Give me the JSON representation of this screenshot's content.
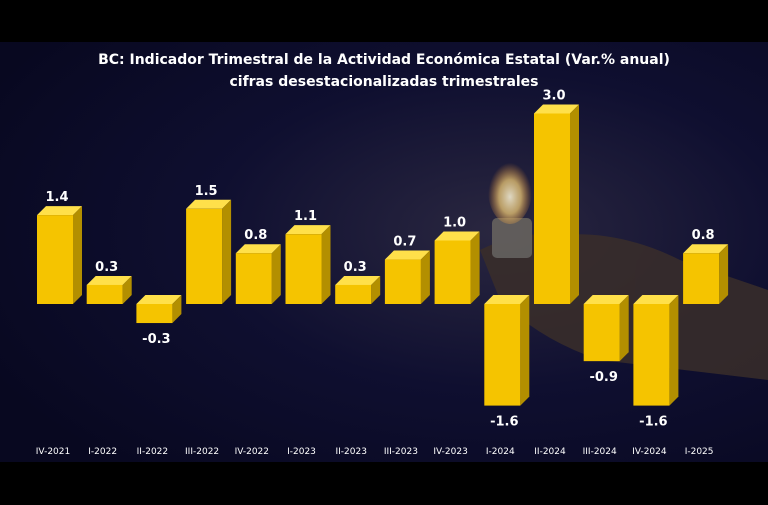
{
  "chart_data": {
    "type": "bar",
    "title": "BC: Indicador Trimestral de la Actividad Económica Estatal (Var.% anual)",
    "subtitle": "cifras desestacionalizadas trimestrales",
    "categories": [
      "IV-2021",
      "I-2022",
      "II-2022",
      "III-2022",
      "IV-2022",
      "I-2023",
      "II-2023",
      "III-2023",
      "IV-2023",
      "I-2024",
      "II-2024",
      "III-2024",
      "IV-2024",
      "I-2025"
    ],
    "values": [
      1.4,
      0.3,
      -0.3,
      1.5,
      0.8,
      1.1,
      0.3,
      0.7,
      1.0,
      -1.6,
      3.0,
      -0.9,
      -1.6,
      0.8
    ],
    "value_labels": [
      "1.4",
      "0.3",
      "-0.3",
      "1.5",
      "0.8",
      "1.1",
      "0.3",
      "0.7",
      "1.0",
      "-1.6",
      "3.0",
      "-0.9",
      "-1.6",
      "0.8"
    ],
    "xlabel": "",
    "ylabel": "",
    "ylim": [
      -1.6,
      3.0
    ],
    "grid": false,
    "legend": "none",
    "colors": {
      "bar": "#f5c400",
      "bar_side": "#b38f00",
      "bar_top": "#ffe04a",
      "background": "#0a0a2a",
      "text": "#ffffff"
    }
  }
}
